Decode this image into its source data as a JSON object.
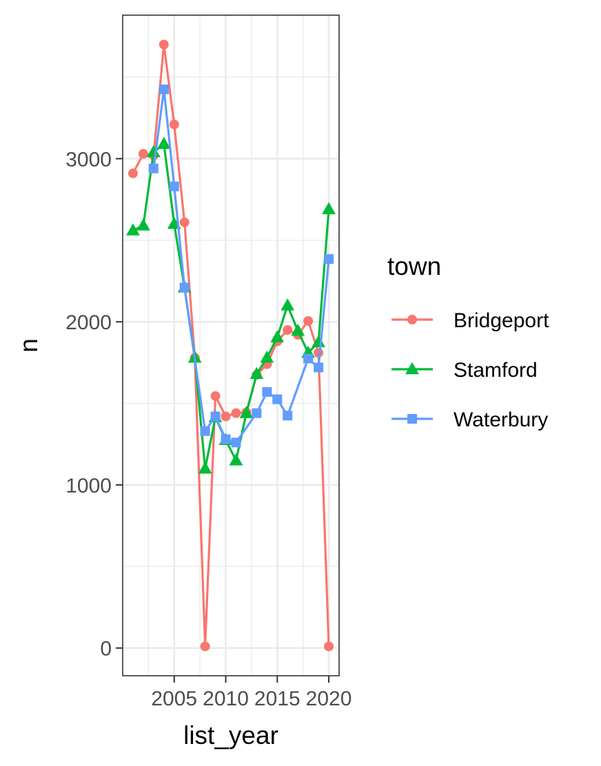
{
  "chart_data": {
    "type": "line",
    "xlabel": "list_year",
    "ylabel": "n",
    "xlim": [
      2000,
      2021
    ],
    "ylim": [
      -170,
      3880
    ],
    "x_ticks": [
      2005,
      2010,
      2015,
      2020
    ],
    "x_tick_labels": [
      "2005",
      "2010",
      "2015",
      "2020"
    ],
    "y_ticks": [
      0,
      1000,
      2000,
      3000
    ],
    "y_tick_labels": [
      "0",
      "1000",
      "2000",
      "3000"
    ],
    "grid": true,
    "legend": {
      "title": "town",
      "placement": "right"
    },
    "series": [
      {
        "name": "Bridgeport",
        "color": "#F8766D",
        "marker": "circle",
        "x": [
          2001,
          2002,
          2003,
          2004,
          2005,
          2006,
          2007,
          2008,
          2009,
          2010,
          2011,
          2012,
          2013,
          2014,
          2015,
          2016,
          2017,
          2018,
          2019,
          2020
        ],
        "y": [
          2910,
          3030,
          3020,
          3700,
          3210,
          2610,
          1780,
          10,
          1545,
          1420,
          1440,
          1445,
          1675,
          1740,
          1880,
          1950,
          1920,
          2005,
          1810,
          10
        ]
      },
      {
        "name": "Stamford",
        "color": "#00BA38",
        "marker": "triangle",
        "x": [
          2001,
          2002,
          2003,
          2004,
          2005,
          2006,
          2007,
          2008,
          2009,
          2010,
          2011,
          2012,
          2013,
          2014,
          2015,
          2016,
          2017,
          2018,
          2019,
          2020
        ],
        "y": [
          2560,
          2590,
          3040,
          3090,
          2600,
          2210,
          1780,
          1100,
          1415,
          1275,
          1150,
          1440,
          1680,
          1780,
          1905,
          2100,
          1945,
          1810,
          1875,
          2690
        ]
      },
      {
        "name": "Waterbury",
        "color": "#619CFF",
        "marker": "square",
        "x": [
          2003,
          2004,
          2005,
          2006,
          2008,
          2009,
          2010,
          2011,
          2013,
          2014,
          2015,
          2016,
          2018,
          2019,
          2020
        ],
        "y": [
          2940,
          3425,
          2830,
          2210,
          1330,
          1420,
          1280,
          1260,
          1440,
          1570,
          1525,
          1425,
          1775,
          1720,
          2385
        ]
      }
    ]
  }
}
